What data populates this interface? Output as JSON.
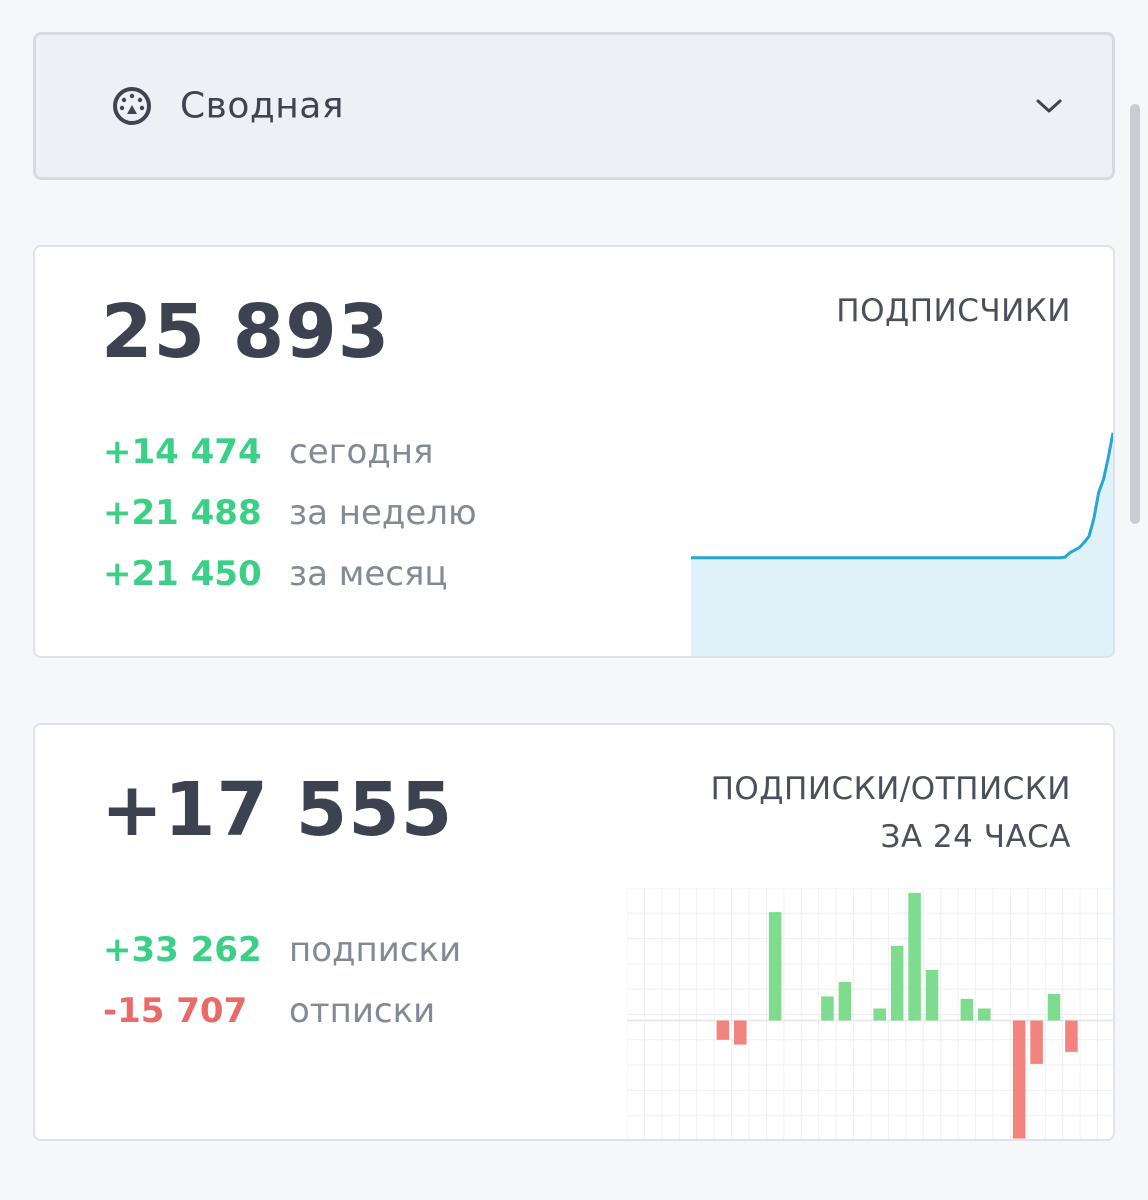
{
  "dropdown": {
    "label": "Сводная",
    "icon": "dashboard-gauge-icon",
    "chevron_icon": "chevron-down-icon"
  },
  "subscribers_card": {
    "total": "25 893",
    "title": "ПОДПИСЧИКИ",
    "stats": [
      {
        "value": "+14 474",
        "label": "сегодня"
      },
      {
        "value": "+21 488",
        "label": "за неделю"
      },
      {
        "value": "+21 450",
        "label": "за месяц"
      }
    ]
  },
  "subs_unsubs_card": {
    "total": "+17 555",
    "title_line1": "ПОДПИСКИ/ОТПИСКИ",
    "title_line2": "ЗА 24 ЧАСА",
    "stats": [
      {
        "value": "+33 262",
        "label": "подписки"
      },
      {
        "value": "-15 707",
        "label": "отписки"
      }
    ]
  },
  "colors": {
    "positive": "#3ccf86",
    "negative": "#ea6a6a",
    "line": "#27a6d3",
    "area": "#dff1f9",
    "bar_positive": "#7fdc8f",
    "bar_negative": "#f2837e"
  },
  "chart_data": [
    {
      "type": "area",
      "series": [
        {
          "values": [
            11524,
            11524,
            11524,
            11524,
            11524,
            11524,
            11524,
            11524,
            11524,
            11524,
            11524,
            11524,
            11524,
            11524,
            11524,
            11524,
            11524,
            11524,
            11524,
            11524,
            11524,
            11524,
            11524,
            11524,
            11524,
            11524,
            11524,
            11524,
            11524,
            11524,
            11524,
            11524,
            11524,
            11524,
            11524,
            11524,
            11524,
            11524,
            11524,
            11524,
            11524,
            11524,
            11524,
            11524,
            11524,
            11524,
            11524,
            11524,
            11524,
            11524,
            11524,
            11524,
            11524,
            11524,
            11524,
            11524,
            11524,
            11524,
            11524,
            11524,
            11524,
            11524,
            11524,
            11524,
            11524,
            11524,
            11524,
            11524,
            11524,
            11524,
            11524,
            11524,
            11524,
            11524,
            11524,
            11524,
            11524,
            11524,
            11600,
            12100,
            12400,
            12700,
            13300,
            14000,
            16000,
            19000,
            20500,
            23000,
            25893
          ]
        }
      ],
      "ylim": [
        0,
        30000
      ],
      "grid": false
    },
    {
      "type": "bar",
      "series": [
        {
          "values": [
            0,
            0,
            0,
            0,
            0,
            -800,
            -1000,
            0,
            4500,
            0,
            0,
            1000,
            1600,
            0,
            500,
            3100,
            5300,
            2100,
            0,
            900,
            500,
            0,
            -4900,
            -1800,
            1100,
            -1300,
            0,
            0
          ]
        }
      ],
      "ylim": [
        -5000,
        5500
      ],
      "grid": true
    }
  ]
}
